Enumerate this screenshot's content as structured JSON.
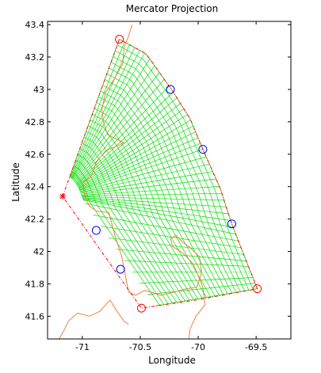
{
  "chart_data": {
    "type": "map",
    "title": "Mercator Projection",
    "xlabel": "Longitude",
    "ylabel": "Latitude",
    "xlim": [
      -71.3,
      -69.2
    ],
    "ylim": [
      41.46,
      43.42
    ],
    "x_ticks": [
      -71,
      -70.5,
      -70,
      -69.5
    ],
    "x_tick_labels": [
      "-71",
      "-70.5",
      "-70",
      "-69.5"
    ],
    "y_ticks": [
      41.6,
      41.8,
      42,
      42.2,
      42.4,
      42.6,
      42.8,
      43,
      43.2,
      43.4
    ],
    "y_tick_labels": [
      "41.6",
      "41.8",
      "42",
      "42.2",
      "42.4",
      "42.6",
      "42.8",
      "43",
      "43.2",
      "43.4"
    ],
    "grid": false,
    "grid_pole": [
      -71.17,
      42.34
    ],
    "outer_arc": [
      [
        -70.68,
        43.31
      ],
      [
        -70.45,
        43.22
      ],
      [
        -70.23,
        43.0
      ],
      [
        -70.07,
        42.82
      ],
      [
        -69.96,
        42.63
      ],
      [
        -69.81,
        42.39
      ],
      [
        -69.71,
        42.17
      ],
      [
        -69.59,
        41.95
      ],
      [
        -69.49,
        41.77
      ]
    ],
    "bottom_edge": [
      [
        -69.49,
        41.77
      ],
      [
        -70.02,
        41.7
      ],
      [
        -70.49,
        41.65
      ]
    ],
    "open_circle_markers": [
      {
        "lon": -70.68,
        "lat": 43.31,
        "color": "#ff0000"
      },
      {
        "lon": -70.24,
        "lat": 43.0,
        "color": "#0000ff"
      },
      {
        "lon": -69.96,
        "lat": 42.63,
        "color": "#0000ff"
      },
      {
        "lon": -69.71,
        "lat": 42.17,
        "color": "#0000ff"
      },
      {
        "lon": -69.49,
        "lat": 41.77,
        "color": "#ff0000"
      },
      {
        "lon": -70.49,
        "lat": 41.65,
        "color": "#ff0000"
      },
      {
        "lon": -70.67,
        "lat": 41.89,
        "color": "#0000ff"
      },
      {
        "lon": -70.88,
        "lat": 42.13,
        "color": "#0000ff"
      }
    ],
    "star_marker": {
      "lon": -71.17,
      "lat": 42.34,
      "color": "#ff0000"
    },
    "coastline": [
      [
        -70.57,
        43.4
      ],
      [
        -70.6,
        43.33
      ],
      [
        -70.64,
        43.26
      ],
      [
        -70.65,
        43.16
      ],
      [
        -70.72,
        43.07
      ],
      [
        -70.8,
        42.98
      ],
      [
        -70.83,
        42.88
      ],
      [
        -70.82,
        42.8
      ],
      [
        -70.78,
        42.72
      ],
      [
        -70.64,
        42.67
      ],
      [
        -70.8,
        42.62
      ],
      [
        -70.88,
        42.55
      ],
      [
        -70.92,
        42.47
      ],
      [
        -71.0,
        42.42
      ],
      [
        -70.98,
        42.35
      ],
      [
        -70.94,
        42.28
      ],
      [
        -70.88,
        42.25
      ],
      [
        -70.77,
        42.24
      ],
      [
        -70.72,
        42.1
      ],
      [
        -70.66,
        41.97
      ],
      [
        -70.62,
        41.82
      ],
      [
        -70.6,
        41.75
      ],
      [
        -70.54,
        41.73
      ],
      [
        -70.46,
        41.76
      ],
      [
        -70.32,
        41.73
      ],
      [
        -70.2,
        41.75
      ],
      [
        -70.1,
        41.77
      ],
      [
        -70.01,
        41.78
      ],
      [
        -69.97,
        41.87
      ],
      [
        -69.99,
        41.97
      ],
      [
        -70.08,
        42.03
      ],
      [
        -70.14,
        42.06
      ],
      [
        -70.19,
        42.1
      ],
      [
        -70.24,
        42.08
      ],
      [
        -70.22,
        42.03
      ],
      [
        -70.13,
        41.99
      ],
      [
        -70.04,
        41.92
      ],
      [
        -69.96,
        41.78
      ],
      [
        -69.94,
        41.67
      ],
      [
        -70.02,
        41.6
      ],
      [
        -70.07,
        41.52
      ],
      [
        -70.08,
        41.46
      ]
    ],
    "south_shore": [
      [
        -71.2,
        41.46
      ],
      [
        -71.16,
        41.51
      ],
      [
        -71.12,
        41.57
      ],
      [
        -71.04,
        41.62
      ],
      [
        -70.94,
        41.6
      ],
      [
        -70.85,
        41.63
      ],
      [
        -70.76,
        41.7
      ],
      [
        -70.7,
        41.63
      ],
      [
        -70.64,
        41.57
      ],
      [
        -70.6,
        41.55
      ]
    ],
    "colors": {
      "grid": "#00dd00",
      "coastline": "#f08040",
      "boundary": "#ff0000",
      "axes": "#000000"
    }
  }
}
